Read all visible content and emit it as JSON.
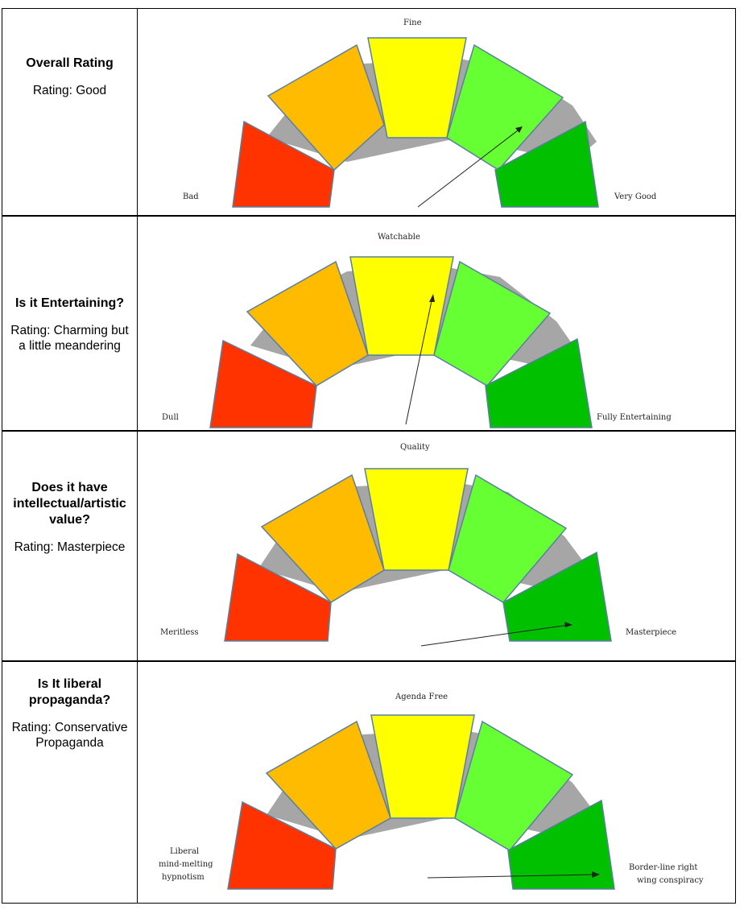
{
  "rows": [
    {
      "question": "Overall Rating",
      "rating": "Rating: Good",
      "labels": {
        "left": "Bad",
        "top": "Fine",
        "right": "Very Good"
      }
    },
    {
      "question": "Is it Entertaining?",
      "rating": "Rating: Charming but a little meandering",
      "labels": {
        "left": "Dull",
        "top": "Watchable",
        "right": "Fully Entertaining"
      }
    },
    {
      "question": "Does it have intellectual/artistic value?",
      "rating": "Rating: Masterpiece",
      "labels": {
        "left": "Meritless",
        "top": "Quality",
        "right": "Masterpiece"
      }
    },
    {
      "question": "Is It liberal propaganda?",
      "rating": "Rating: Conservative Propaganda",
      "labels": {
        "left": [
          "Liberal",
          "mind-melting",
          "hypnotism"
        ],
        "top": "Agenda Free",
        "right": [
          "Border-line right",
          "wing conspiracy"
        ]
      }
    }
  ],
  "colors": {
    "segment_1": "#ff3300",
    "segment_2": "#ffbb00",
    "segment_3": "#ffff00",
    "segment_4": "#66ff33",
    "segment_5": "#00c000",
    "backing": "#a6a6a6",
    "outline": "#5a7fa0"
  }
}
